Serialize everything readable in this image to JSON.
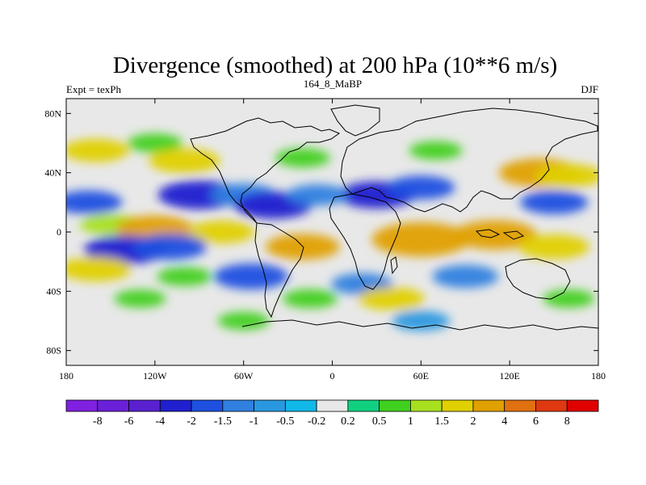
{
  "chart_data": {
    "type": "heatmap",
    "title": "Divergence (smoothed) at 200 hPa (10**6 m/s)",
    "subtitle_left": "Expt = texPh",
    "subtitle_center": "164_8_MaBP",
    "subtitle_right": "DJF",
    "x_range": [
      -180,
      180
    ],
    "y_range": [
      -90,
      90
    ],
    "x_ticks": [
      {
        "value": -180,
        "label": "180"
      },
      {
        "value": -120,
        "label": "120W"
      },
      {
        "value": -60,
        "label": "60W"
      },
      {
        "value": 0,
        "label": "0"
      },
      {
        "value": 60,
        "label": "60E"
      },
      {
        "value": 120,
        "label": "120E"
      },
      {
        "value": 180,
        "label": "180"
      }
    ],
    "y_ticks": [
      {
        "value": 80,
        "label": "80N"
      },
      {
        "value": 40,
        "label": "40N"
      },
      {
        "value": 0,
        "label": "0"
      },
      {
        "value": -40,
        "label": "40S"
      },
      {
        "value": -80,
        "label": "80S"
      }
    ],
    "colorbar": {
      "levels": [
        "-8",
        "-6",
        "-4",
        "-2",
        "-1.5",
        "-1",
        "-0.5",
        "-0.2",
        "0.2",
        "0.5",
        "1",
        "1.5",
        "2",
        "4",
        "6",
        "8"
      ],
      "colors": [
        "#8020e0",
        "#6a20d8",
        "#5a20d0",
        "#2020d0",
        "#1e50e0",
        "#3080e0",
        "#2a98e0",
        "#10b8e8",
        "#e8e8e8",
        "#10d080",
        "#40d020",
        "#a8e020",
        "#e0d000",
        "#e0a000",
        "#e07010",
        "#e03810",
        "#e00000"
      ]
    },
    "fields": [
      {
        "lon": -160,
        "lat": 55,
        "value": 1.5
      },
      {
        "lon": -120,
        "lat": 60,
        "value": 0.8
      },
      {
        "lon": -100,
        "lat": 48,
        "value": 1.8
      },
      {
        "lon": -20,
        "lat": 50,
        "value": 0.8
      },
      {
        "lon": 70,
        "lat": 55,
        "value": 0.7
      },
      {
        "lon": 140,
        "lat": 40,
        "value": 2.4
      },
      {
        "lon": 160,
        "lat": 38,
        "value": 1.6
      },
      {
        "lon": -90,
        "lat": 25,
        "value": -2.5
      },
      {
        "lon": -60,
        "lat": 25,
        "value": -1.5
      },
      {
        "lon": 30,
        "lat": 25,
        "value": -2.2
      },
      {
        "lon": 60,
        "lat": 30,
        "value": -1.6
      },
      {
        "lon": 150,
        "lat": 20,
        "value": -1.6
      },
      {
        "lon": -165,
        "lat": 20,
        "value": -1.6
      },
      {
        "lon": -150,
        "lat": 5,
        "value": 1.2
      },
      {
        "lon": -120,
        "lat": 2,
        "value": 2.2
      },
      {
        "lon": -75,
        "lat": 0,
        "value": 1.5
      },
      {
        "lon": -40,
        "lat": 18,
        "value": -2.2
      },
      {
        "lon": -10,
        "lat": 25,
        "value": -1.2
      },
      {
        "lon": -140,
        "lat": -12,
        "value": -2.5
      },
      {
        "lon": -110,
        "lat": -10,
        "value": -2.0
      },
      {
        "lon": 60,
        "lat": -5,
        "value": 3.5
      },
      {
        "lon": 110,
        "lat": -2,
        "value": 2.6
      },
      {
        "lon": 150,
        "lat": -10,
        "value": 1.8
      },
      {
        "lon": -20,
        "lat": -10,
        "value": 2.0
      },
      {
        "lon": -160,
        "lat": -25,
        "value": 1.8
      },
      {
        "lon": -100,
        "lat": -30,
        "value": 0.8
      },
      {
        "lon": 90,
        "lat": -30,
        "value": -1.5
      },
      {
        "lon": 20,
        "lat": -35,
        "value": -1.2
      },
      {
        "lon": -55,
        "lat": -30,
        "value": -2.0
      },
      {
        "lon": -15,
        "lat": -45,
        "value": 0.8
      },
      {
        "lon": 160,
        "lat": -45,
        "value": 0.6
      },
      {
        "lon": -130,
        "lat": -45,
        "value": 0.6
      },
      {
        "lon": 40,
        "lat": -45,
        "value": 1.5
      },
      {
        "lon": 60,
        "lat": -60,
        "value": -1.0
      },
      {
        "lon": -60,
        "lat": -60,
        "value": 0.6
      }
    ]
  }
}
